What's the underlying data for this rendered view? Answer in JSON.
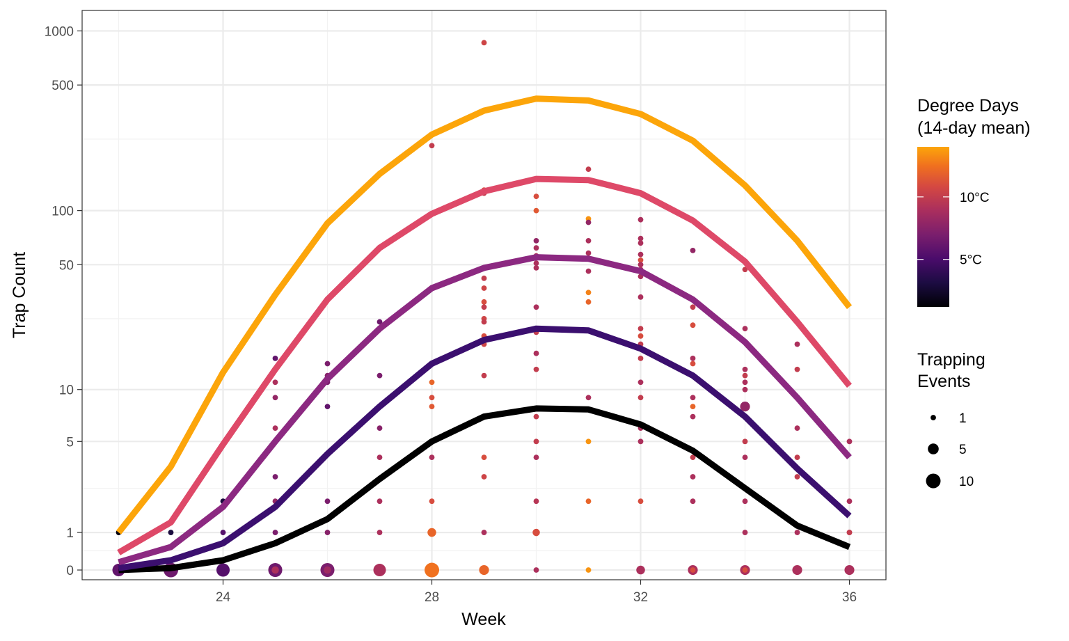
{
  "chart_data": {
    "type": "scatter",
    "xlabel": "Week",
    "ylabel": "Trap Count",
    "y_scale": "pseudo-log",
    "xlim": [
      21.3,
      36.7
    ],
    "ylim": [
      -0.25,
      1300
    ],
    "x_ticks": [
      24,
      28,
      32,
      36
    ],
    "x_tick_labels": [
      "24",
      "28",
      "32",
      "36"
    ],
    "x_minor_ticks": [
      22,
      26,
      30,
      34
    ],
    "y_ticks": [
      0,
      1,
      5,
      10,
      50,
      100,
      500,
      1000
    ],
    "y_tick_labels": [
      "0",
      "1",
      "5",
      "10",
      "50",
      "100",
      "500",
      "1000"
    ],
    "y_minor_ticks": [
      0.5,
      2.5,
      25,
      250
    ],
    "grid": true,
    "color_legend": {
      "title_line1": "Degree Days",
      "title_line2": "(14-day mean)",
      "labels": [
        "10°C",
        "5°C"
      ],
      "label_values": [
        10,
        5
      ],
      "min": 1.2,
      "max": 14
    },
    "size_legend": {
      "title_line1": "Trapping",
      "title_line2": "Events",
      "labels": [
        "1",
        "5",
        "10"
      ],
      "values": [
        1,
        5,
        10
      ]
    },
    "lines": [
      {
        "color": "#000000",
        "x": [
          22,
          23,
          24,
          25,
          26,
          27,
          28,
          29,
          30,
          31,
          32,
          33,
          34,
          35,
          36
        ],
        "y": [
          0,
          0.05,
          0.25,
          0.7,
          1.4,
          2.9,
          5,
          7,
          7.8,
          7.7,
          6.3,
          4.4,
          2.5,
          1.2,
          0.6
        ]
      },
      {
        "color": "#3b0f6f",
        "x": [
          22,
          23,
          24,
          25,
          26,
          27,
          28,
          29,
          30,
          31,
          32,
          33,
          34,
          35,
          36
        ],
        "y": [
          0.05,
          0.25,
          0.7,
          1.8,
          4.2,
          8,
          14,
          19,
          22,
          21.5,
          17,
          12,
          7,
          3.4,
          1.5
        ]
      },
      {
        "color": "#8c2981",
        "x": [
          22,
          23,
          24,
          25,
          26,
          27,
          28,
          29,
          30,
          31,
          32,
          33,
          34,
          35,
          36
        ],
        "y": [
          0.2,
          0.6,
          1.8,
          5,
          11.5,
          22,
          37,
          48,
          55,
          54,
          46,
          32,
          18.5,
          9,
          4
        ]
      },
      {
        "color": "#de4968",
        "x": [
          22,
          23,
          24,
          25,
          26,
          27,
          28,
          29,
          30,
          31,
          32,
          33,
          34,
          35,
          36
        ],
        "y": [
          0.45,
          1.3,
          4.8,
          13,
          32,
          62,
          96,
          128,
          150,
          148,
          125,
          88,
          52,
          24,
          10.5
        ]
      },
      {
        "color": "#fca50a",
        "x": [
          22,
          23,
          24,
          25,
          26,
          27,
          28,
          29,
          30,
          31,
          32,
          33,
          34,
          35,
          36
        ],
        "y": [
          1,
          3.5,
          12.5,
          34,
          85,
          160,
          265,
          360,
          420,
          410,
          345,
          245,
          138,
          68,
          29
        ]
      }
    ],
    "points": [
      {
        "x": 22,
        "y": 1,
        "dd": 1.5,
        "n": 1
      },
      {
        "x": 22,
        "y": 0,
        "dd": 6,
        "n": 7
      },
      {
        "x": 23,
        "y": 1,
        "dd": 3,
        "n": 1
      },
      {
        "x": 23,
        "y": 0,
        "dd": 6.5,
        "n": 10
      },
      {
        "x": 24,
        "y": 2,
        "dd": 3,
        "n": 1
      },
      {
        "x": 24,
        "y": 1,
        "dd": 5.5,
        "n": 1
      },
      {
        "x": 24,
        "y": 0,
        "dd": 5.5,
        "n": 8
      },
      {
        "x": 25,
        "y": 15,
        "dd": 6,
        "n": 1
      },
      {
        "x": 25,
        "y": 11,
        "dd": 9,
        "n": 1
      },
      {
        "x": 25,
        "y": 9,
        "dd": 8,
        "n": 1
      },
      {
        "x": 25,
        "y": 6,
        "dd": 9,
        "n": 1
      },
      {
        "x": 25,
        "y": 3,
        "dd": 7,
        "n": 1
      },
      {
        "x": 25,
        "y": 2,
        "dd": 8,
        "n": 1
      },
      {
        "x": 25,
        "y": 1,
        "dd": 7,
        "n": 1
      },
      {
        "x": 25,
        "y": 0,
        "dd": 6.5,
        "n": 9
      },
      {
        "x": 25,
        "y": 0,
        "dd": 9,
        "n": 2
      },
      {
        "x": 26,
        "y": 14,
        "dd": 7,
        "n": 1
      },
      {
        "x": 26,
        "y": 12,
        "dd": 7.5,
        "n": 1
      },
      {
        "x": 26,
        "y": 11,
        "dd": 7,
        "n": 1
      },
      {
        "x": 26,
        "y": 8,
        "dd": 6,
        "n": 1
      },
      {
        "x": 26,
        "y": 2,
        "dd": 7,
        "n": 1
      },
      {
        "x": 26,
        "y": 1,
        "dd": 7.5,
        "n": 1
      },
      {
        "x": 26,
        "y": 0,
        "dd": 7,
        "n": 9
      },
      {
        "x": 26,
        "y": 0,
        "dd": 8.5,
        "n": 2
      },
      {
        "x": 27,
        "y": 24,
        "dd": 6.5,
        "n": 1
      },
      {
        "x": 27,
        "y": 12,
        "dd": 7,
        "n": 1
      },
      {
        "x": 27,
        "y": 6,
        "dd": 7.5,
        "n": 1
      },
      {
        "x": 27,
        "y": 4,
        "dd": 9,
        "n": 1
      },
      {
        "x": 27,
        "y": 2,
        "dd": 9,
        "n": 1
      },
      {
        "x": 27,
        "y": 1,
        "dd": 9,
        "n": 1
      },
      {
        "x": 27,
        "y": 0,
        "dd": 9,
        "n": 7
      },
      {
        "x": 28,
        "y": 230,
        "dd": 10,
        "n": 1
      },
      {
        "x": 28,
        "y": 11,
        "dd": 12,
        "n": 1
      },
      {
        "x": 28,
        "y": 9,
        "dd": 11,
        "n": 1
      },
      {
        "x": 28,
        "y": 8,
        "dd": 11.5,
        "n": 1
      },
      {
        "x": 28,
        "y": 5,
        "dd": 9,
        "n": 1
      },
      {
        "x": 28,
        "y": 4,
        "dd": 9,
        "n": 1
      },
      {
        "x": 28,
        "y": 2,
        "dd": 11,
        "n": 1
      },
      {
        "x": 28,
        "y": 1,
        "dd": 12,
        "n": 3
      },
      {
        "x": 28,
        "y": 0,
        "dd": 12.5,
        "n": 10
      },
      {
        "x": 29,
        "y": 860,
        "dd": 10.5,
        "n": 1
      },
      {
        "x": 29,
        "y": 130,
        "dd": 11,
        "n": 1
      },
      {
        "x": 29,
        "y": 125,
        "dd": 10,
        "n": 1
      },
      {
        "x": 29,
        "y": 42,
        "dd": 10,
        "n": 1
      },
      {
        "x": 29,
        "y": 37,
        "dd": 10.5,
        "n": 1
      },
      {
        "x": 29,
        "y": 31,
        "dd": 11,
        "n": 1
      },
      {
        "x": 29,
        "y": 29,
        "dd": 10,
        "n": 1
      },
      {
        "x": 29,
        "y": 25,
        "dd": 10.5,
        "n": 1
      },
      {
        "x": 29,
        "y": 24,
        "dd": 10,
        "n": 1
      },
      {
        "x": 29,
        "y": 20,
        "dd": 11,
        "n": 1
      },
      {
        "x": 29,
        "y": 18,
        "dd": 10.5,
        "n": 1
      },
      {
        "x": 29,
        "y": 12,
        "dd": 10,
        "n": 1
      },
      {
        "x": 29,
        "y": 4,
        "dd": 11,
        "n": 1
      },
      {
        "x": 29,
        "y": 3,
        "dd": 10.5,
        "n": 1
      },
      {
        "x": 29,
        "y": 1,
        "dd": 9,
        "n": 1
      },
      {
        "x": 29,
        "y": 0,
        "dd": 12,
        "n": 4
      },
      {
        "x": 30,
        "y": 120,
        "dd": 11,
        "n": 1
      },
      {
        "x": 30,
        "y": 100,
        "dd": 11.5,
        "n": 1
      },
      {
        "x": 30,
        "y": 68,
        "dd": 8,
        "n": 1
      },
      {
        "x": 30,
        "y": 62,
        "dd": 9,
        "n": 1
      },
      {
        "x": 30,
        "y": 56,
        "dd": 9,
        "n": 1
      },
      {
        "x": 30,
        "y": 51,
        "dd": 9,
        "n": 1
      },
      {
        "x": 30,
        "y": 48,
        "dd": 9,
        "n": 1
      },
      {
        "x": 30,
        "y": 29,
        "dd": 9,
        "n": 1
      },
      {
        "x": 30,
        "y": 22,
        "dd": 9,
        "n": 1
      },
      {
        "x": 30,
        "y": 21,
        "dd": 10,
        "n": 1
      },
      {
        "x": 30,
        "y": 16,
        "dd": 9,
        "n": 1
      },
      {
        "x": 30,
        "y": 13,
        "dd": 10,
        "n": 1
      },
      {
        "x": 30,
        "y": 7,
        "dd": 10,
        "n": 1
      },
      {
        "x": 30,
        "y": 5,
        "dd": 10,
        "n": 1
      },
      {
        "x": 30,
        "y": 4,
        "dd": 9,
        "n": 1
      },
      {
        "x": 30,
        "y": 2,
        "dd": 9.5,
        "n": 1
      },
      {
        "x": 30,
        "y": 1,
        "dd": 11,
        "n": 2
      },
      {
        "x": 30,
        "y": 0,
        "dd": 9,
        "n": 1
      },
      {
        "x": 31,
        "y": 170,
        "dd": 10,
        "n": 1
      },
      {
        "x": 31,
        "y": 90,
        "dd": 13.5,
        "n": 1
      },
      {
        "x": 31,
        "y": 86,
        "dd": 8,
        "n": 1
      },
      {
        "x": 31,
        "y": 68,
        "dd": 9,
        "n": 1
      },
      {
        "x": 31,
        "y": 58,
        "dd": 9,
        "n": 1
      },
      {
        "x": 31,
        "y": 46,
        "dd": 9,
        "n": 1
      },
      {
        "x": 31,
        "y": 35,
        "dd": 13,
        "n": 1
      },
      {
        "x": 31,
        "y": 31,
        "dd": 12,
        "n": 1
      },
      {
        "x": 31,
        "y": 9,
        "dd": 9,
        "n": 1
      },
      {
        "x": 31,
        "y": 5,
        "dd": 13.5,
        "n": 1
      },
      {
        "x": 31,
        "y": 2,
        "dd": 12,
        "n": 1
      },
      {
        "x": 31,
        "y": 0,
        "dd": 13.5,
        "n": 1
      },
      {
        "x": 32,
        "y": 89,
        "dd": 9,
        "n": 1
      },
      {
        "x": 32,
        "y": 70,
        "dd": 9,
        "n": 1
      },
      {
        "x": 32,
        "y": 66,
        "dd": 9,
        "n": 1
      },
      {
        "x": 32,
        "y": 57,
        "dd": 9,
        "n": 1
      },
      {
        "x": 32,
        "y": 53,
        "dd": 11,
        "n": 1
      },
      {
        "x": 32,
        "y": 50,
        "dd": 9,
        "n": 1
      },
      {
        "x": 32,
        "y": 47,
        "dd": 9,
        "n": 1
      },
      {
        "x": 32,
        "y": 43,
        "dd": 9,
        "n": 1
      },
      {
        "x": 32,
        "y": 33,
        "dd": 9,
        "n": 1
      },
      {
        "x": 32,
        "y": 22,
        "dd": 10,
        "n": 1
      },
      {
        "x": 32,
        "y": 20,
        "dd": 11,
        "n": 1
      },
      {
        "x": 32,
        "y": 18,
        "dd": 10,
        "n": 1
      },
      {
        "x": 32,
        "y": 15,
        "dd": 10,
        "n": 1
      },
      {
        "x": 32,
        "y": 11,
        "dd": 9,
        "n": 1
      },
      {
        "x": 32,
        "y": 9,
        "dd": 10,
        "n": 1
      },
      {
        "x": 32,
        "y": 6,
        "dd": 9,
        "n": 1
      },
      {
        "x": 32,
        "y": 5,
        "dd": 9,
        "n": 1
      },
      {
        "x": 32,
        "y": 2,
        "dd": 11,
        "n": 1
      },
      {
        "x": 32,
        "y": 0,
        "dd": 9,
        "n": 3
      },
      {
        "x": 33,
        "y": 60,
        "dd": 8,
        "n": 1
      },
      {
        "x": 33,
        "y": 29,
        "dd": 10,
        "n": 1
      },
      {
        "x": 33,
        "y": 23,
        "dd": 11,
        "n": 1
      },
      {
        "x": 33,
        "y": 15,
        "dd": 9,
        "n": 1
      },
      {
        "x": 33,
        "y": 14,
        "dd": 11,
        "n": 1
      },
      {
        "x": 33,
        "y": 12,
        "dd": 9,
        "n": 1
      },
      {
        "x": 33,
        "y": 9,
        "dd": 9,
        "n": 1
      },
      {
        "x": 33,
        "y": 8,
        "dd": 12,
        "n": 1
      },
      {
        "x": 33,
        "y": 7,
        "dd": 9,
        "n": 1
      },
      {
        "x": 33,
        "y": 4,
        "dd": 10,
        "n": 1
      },
      {
        "x": 33,
        "y": 3,
        "dd": 9,
        "n": 1
      },
      {
        "x": 33,
        "y": 2,
        "dd": 9,
        "n": 1
      },
      {
        "x": 33,
        "y": 0,
        "dd": 9,
        "n": 4
      },
      {
        "x": 33,
        "y": 0,
        "dd": 11,
        "n": 1
      },
      {
        "x": 34,
        "y": 47,
        "dd": 10,
        "n": 1
      },
      {
        "x": 34,
        "y": 22,
        "dd": 9,
        "n": 1
      },
      {
        "x": 34,
        "y": 13,
        "dd": 9,
        "n": 1
      },
      {
        "x": 34,
        "y": 12,
        "dd": 10,
        "n": 1
      },
      {
        "x": 34,
        "y": 11,
        "dd": 9,
        "n": 1
      },
      {
        "x": 34,
        "y": 10,
        "dd": 9,
        "n": 1
      },
      {
        "x": 34,
        "y": 8,
        "dd": 8,
        "n": 4
      },
      {
        "x": 34,
        "y": 5,
        "dd": 10,
        "n": 1
      },
      {
        "x": 34,
        "y": 4,
        "dd": 9,
        "n": 1
      },
      {
        "x": 34,
        "y": 2,
        "dd": 9,
        "n": 1
      },
      {
        "x": 34,
        "y": 1,
        "dd": 9,
        "n": 1
      },
      {
        "x": 34,
        "y": 0,
        "dd": 9,
        "n": 4
      },
      {
        "x": 34,
        "y": 0,
        "dd": 11,
        "n": 1
      },
      {
        "x": 35,
        "y": 18,
        "dd": 9,
        "n": 1
      },
      {
        "x": 35,
        "y": 13,
        "dd": 10,
        "n": 1
      },
      {
        "x": 35,
        "y": 6,
        "dd": 9,
        "n": 1
      },
      {
        "x": 35,
        "y": 4,
        "dd": 10,
        "n": 1
      },
      {
        "x": 35,
        "y": 3,
        "dd": 10,
        "n": 1
      },
      {
        "x": 35,
        "y": 1,
        "dd": 9,
        "n": 1
      },
      {
        "x": 35,
        "y": 0,
        "dd": 9,
        "n": 4
      },
      {
        "x": 36,
        "y": 5,
        "dd": 9,
        "n": 1
      },
      {
        "x": 36,
        "y": 2,
        "dd": 9,
        "n": 1
      },
      {
        "x": 36,
        "y": 1,
        "dd": 9,
        "n": 1
      },
      {
        "x": 36,
        "y": 1,
        "dd": 10,
        "n": 1
      },
      {
        "x": 36,
        "y": 0,
        "dd": 9,
        "n": 4
      }
    ]
  }
}
